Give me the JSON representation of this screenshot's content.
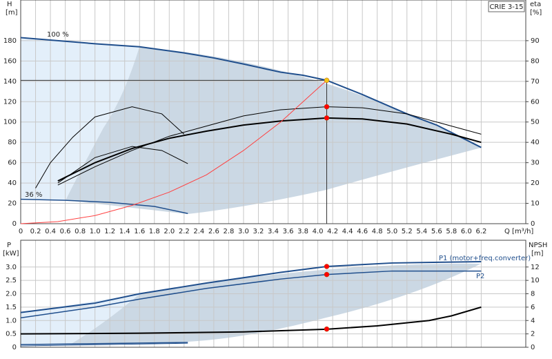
{
  "chart_data": [
    {
      "type": "line",
      "title": "CRIE 3-15",
      "ylabel": "H",
      "yunit": "[m]",
      "y2label": "eta",
      "y2unit": "[%]",
      "xlabel": "Q [m³/h]",
      "annotations": [
        "100 %",
        "36 %"
      ],
      "xlim": [
        0,
        6.8
      ],
      "xticks": [
        0,
        0.2,
        0.4,
        0.6,
        0.8,
        {
          "value": 1,
          "label": "1.0"
        },
        1.2,
        1.4,
        1.6,
        1.8,
        {
          "value": 2,
          "label": "2.0"
        },
        2.2,
        2.4,
        2.6,
        2.8,
        {
          "value": 3,
          "label": "3.0"
        },
        3.2,
        3.4,
        3.6,
        3.8,
        {
          "value": 4,
          "label": "4.0"
        },
        4.2,
        4.4,
        4.6,
        4.8,
        {
          "value": 5,
          "label": "5.0"
        },
        5.2,
        5.4,
        5.6,
        5.8,
        {
          "value": 6,
          "label": "6.0"
        },
        6.2
      ],
      "ylim": [
        0,
        220
      ],
      "yticks": [
        0,
        20,
        40,
        60,
        80,
        100,
        120,
        140,
        160,
        180
      ],
      "y2lim": [
        0,
        110
      ],
      "y2ticks": [
        0,
        10,
        20,
        30,
        40,
        50,
        60,
        70,
        80,
        90
      ],
      "grid": true,
      "series": [
        {
          "color": "#1f4e8c",
          "width": 2,
          "x": [
            0,
            1,
            1.6,
            2.2,
            2.6,
            3,
            3.5,
            3.8,
            4.12,
            4.6,
            5.2,
            5.6,
            6.2
          ],
          "values": [
            183,
            177,
            174,
            168,
            163,
            157,
            149,
            146,
            141,
            127,
            108,
            97,
            75
          ]
        },
        {
          "color": "#1f4e8c",
          "width": 1.5,
          "x": [
            0,
            0.6,
            1.2,
            1.8,
            2.25
          ],
          "values": [
            24,
            23,
            21,
            17,
            10
          ]
        },
        {
          "color": "#000000",
          "width": 2,
          "axis": "y2",
          "x": [
            0.5,
            1,
            1.5,
            2,
            2.5,
            3,
            3.5,
            4.12,
            4.6,
            5.2,
            5.8,
            6.2
          ],
          "values": [
            21,
            30,
            37,
            42,
            45.5,
            48.5,
            50.5,
            52,
            51.5,
            49,
            44,
            40
          ]
        },
        {
          "color": "#000000",
          "width": 1,
          "axis": "y2",
          "x": [
            0.5,
            1,
            1.5,
            2,
            2.5,
            3,
            3.5,
            4.12,
            4.6,
            5.2,
            5.8,
            6.2
          ],
          "values": [
            19,
            28,
            36,
            43,
            48,
            53,
            56,
            57.5,
            57,
            54,
            48,
            44
          ]
        },
        {
          "color": "#000000",
          "width": 1,
          "axis": "y2",
          "x": [
            0.2,
            0.4,
            0.7,
            1,
            1.5,
            1.9,
            2.2
          ],
          "values": [
            17.5,
            30,
            42.5,
            52.5,
            57.5,
            54,
            44
          ]
        },
        {
          "color": "#000000",
          "width": 1,
          "axis": "y2",
          "x": [
            0.5,
            1,
            1.5,
            1.9,
            2.25
          ],
          "values": [
            20,
            32.5,
            38,
            36,
            29.5
          ]
        },
        {
          "color": "#ff4040",
          "width": 1,
          "x": [
            0,
            0.5,
            1,
            1.5,
            2,
            2.5,
            3,
            3.5,
            4.12
          ],
          "values": [
            0,
            2,
            8,
            18,
            31,
            48,
            72,
            100,
            141
          ]
        }
      ],
      "markers": [
        {
          "x": 4.12,
          "y": 141,
          "color": "#f5c518"
        },
        {
          "x": 4.12,
          "y": 115,
          "color": "#ff0000"
        },
        {
          "x": 4.12,
          "y": 104,
          "color": "#ff0000"
        }
      ]
    },
    {
      "type": "line",
      "ylabel": "P",
      "yunit": "[kW]",
      "y2label": "NPSH",
      "y2unit": "[m]",
      "xlim": [
        0,
        6.8
      ],
      "ylim": [
        0,
        4
      ],
      "yticks": [
        0,
        0.5,
        {
          "value": 1,
          "label": "1.0"
        },
        1.5,
        {
          "value": 2,
          "label": "2.0"
        },
        2.5,
        {
          "value": 3,
          "label": "3.0"
        }
      ],
      "y2lim": [
        0,
        16
      ],
      "y2ticks": [
        0,
        2,
        4,
        6,
        8,
        10,
        12
      ],
      "grid": true,
      "series": [
        {
          "name": "P1 (motor+freq.converter)",
          "color": "#1f4e8c",
          "width": 2,
          "x": [
            0,
            1,
            1.6,
            2.5,
            3.5,
            4.12,
            5,
            6.2
          ],
          "values": [
            1.3,
            1.65,
            2.0,
            2.4,
            2.8,
            3.02,
            3.15,
            3.2
          ]
        },
        {
          "name": "P2",
          "color": "#1f4e8c",
          "width": 1.5,
          "x": [
            0,
            1,
            1.6,
            2.5,
            3.5,
            4.12,
            5,
            6.2
          ],
          "values": [
            1.1,
            1.5,
            1.8,
            2.2,
            2.55,
            2.72,
            2.85,
            2.85
          ]
        },
        {
          "color": "#000000",
          "width": 2,
          "axis": "y2",
          "x": [
            0,
            1.6,
            3,
            4.12,
            4.8,
            5.5,
            5.8,
            6.2
          ],
          "values": [
            2,
            2.1,
            2.3,
            2.7,
            3.2,
            4,
            4.7,
            6
          ]
        },
        {
          "color": "#1f4e8c",
          "width": 1.5,
          "x": [
            0,
            2.25
          ],
          "values": [
            0.1,
            0.18
          ]
        },
        {
          "color": "#1f4e8c",
          "width": 1,
          "x": [
            0,
            2.25
          ],
          "values": [
            0.05,
            0.15
          ]
        }
      ],
      "markers": [
        {
          "x": 4.12,
          "y": 3.02,
          "color": "#ff0000"
        },
        {
          "x": 4.12,
          "y": 2.72,
          "color": "#ff0000"
        },
        {
          "x": 4.12,
          "y": 0.68,
          "color": "#ff0000"
        }
      ]
    }
  ]
}
